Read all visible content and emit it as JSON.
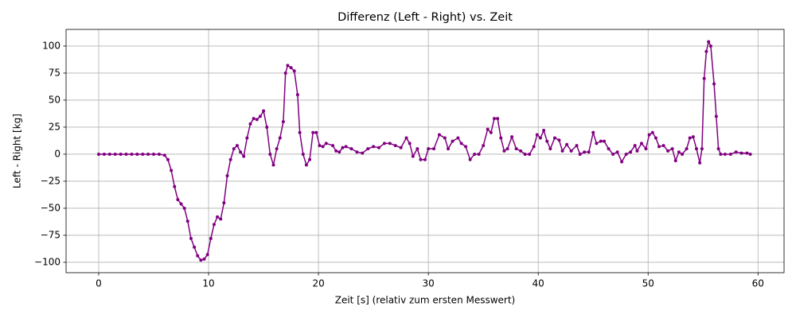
{
  "chart_data": {
    "type": "line",
    "title": "Differenz (Left - Right) vs. Zeit",
    "x_label": "Zeit [s] (relativ zum ersten Messwert)",
    "y_label": "Left - Right [kg]",
    "x": [
      0,
      0.5,
      1,
      1.5,
      2,
      2.5,
      3,
      3.5,
      4,
      4.5,
      5,
      5.5,
      6,
      6.3,
      6.6,
      6.9,
      7.2,
      7.5,
      7.8,
      8.1,
      8.4,
      8.7,
      9.0,
      9.3,
      9.6,
      9.9,
      10.2,
      10.5,
      10.8,
      11.1,
      11.4,
      11.7,
      12.0,
      12.3,
      12.6,
      12.9,
      13.2,
      13.5,
      13.8,
      14.1,
      14.4,
      14.7,
      15.0,
      15.3,
      15.6,
      15.9,
      16.2,
      16.5,
      16.8,
      17.0,
      17.2,
      17.5,
      17.8,
      18.1,
      18.3,
      18.6,
      18.9,
      19.2,
      19.5,
      19.8,
      20.1,
      20.4,
      20.7,
      21.3,
      21.6,
      21.9,
      22.2,
      22.5,
      23.0,
      23.5,
      24,
      24.5,
      25,
      25.5,
      26,
      26.5,
      27,
      27.5,
      28,
      28.3,
      28.6,
      29,
      29.3,
      29.7,
      30,
      30.5,
      31,
      31.5,
      31.8,
      32.2,
      32.7,
      33,
      33.4,
      33.8,
      34.2,
      34.6,
      35,
      35.4,
      35.7,
      36,
      36.3,
      36.6,
      36.9,
      37.2,
      37.6,
      38,
      38.4,
      38.8,
      39.2,
      39.6,
      39.9,
      40.2,
      40.5,
      40.8,
      41.1,
      41.5,
      41.9,
      42.2,
      42.6,
      43,
      43.5,
      43.8,
      44.2,
      44.6,
      45,
      45.3,
      45.7,
      46,
      46.4,
      46.8,
      47.2,
      47.6,
      48,
      48.4,
      48.8,
      49,
      49.4,
      49.8,
      50.1,
      50.4,
      50.7,
      51,
      51.4,
      51.8,
      52.2,
      52.5,
      52.8,
      53.1,
      53.5,
      53.8,
      54.1,
      54.4,
      54.7,
      54.9,
      55.1,
      55.3,
      55.5,
      55.7,
      56.0,
      56.2,
      56.4,
      56.6,
      57,
      57.5,
      58,
      58.5,
      59,
      59.3
    ],
    "series": [
      {
        "name": "Differenz",
        "color": "#800080",
        "values": [
          0,
          0,
          0,
          0,
          0,
          0,
          0,
          0,
          0,
          0,
          0,
          0,
          -1,
          -5,
          -15,
          -30,
          -42,
          -46,
          -50,
          -62,
          -78,
          -86,
          -94,
          -98,
          -97,
          -93,
          -78,
          -65,
          -58,
          -60,
          -45,
          -20,
          -5,
          5,
          8,
          2,
          -2,
          15,
          28,
          33,
          32,
          35,
          40,
          25,
          0,
          -10,
          5,
          15,
          30,
          75,
          82,
          80,
          77,
          55,
          20,
          0,
          -10,
          -5,
          20,
          20,
          8,
          7,
          10,
          8,
          3,
          2,
          6,
          7,
          5,
          2,
          1,
          5,
          7,
          6,
          10,
          10,
          8,
          6,
          15,
          10,
          -2,
          5,
          -5,
          -5,
          5,
          5,
          18,
          15,
          5,
          12,
          15,
          10,
          7,
          -5,
          0,
          0,
          8,
          23,
          20,
          33,
          33,
          15,
          3,
          5,
          16,
          5,
          3,
          0,
          0,
          7,
          18,
          15,
          22,
          12,
          5,
          15,
          13,
          3,
          9,
          3,
          8,
          0,
          2,
          2,
          20,
          10,
          12,
          12,
          5,
          0,
          2,
          -7,
          0,
          2,
          8,
          3,
          10,
          5,
          18,
          20,
          15,
          7,
          8,
          3,
          5,
          -6,
          2,
          0,
          5,
          15,
          16,
          5,
          -8,
          5,
          70,
          95,
          104,
          100,
          65,
          35,
          5,
          0,
          0,
          0,
          2,
          1,
          1,
          0
        ]
      }
    ],
    "xlim": [
      -2.97,
      62.37
    ],
    "ylim": [
      -109.6,
      115.4
    ],
    "xticks": [
      0,
      10,
      20,
      30,
      40,
      50,
      60
    ],
    "yticks": [
      {
        "value": -100,
        "label": "−100"
      },
      {
        "value": -75,
        "label": "−75"
      },
      {
        "value": -50,
        "label": "−50"
      },
      {
        "value": -25,
        "label": "−25"
      },
      0,
      25,
      50,
      75,
      100
    ],
    "grid": true
  }
}
